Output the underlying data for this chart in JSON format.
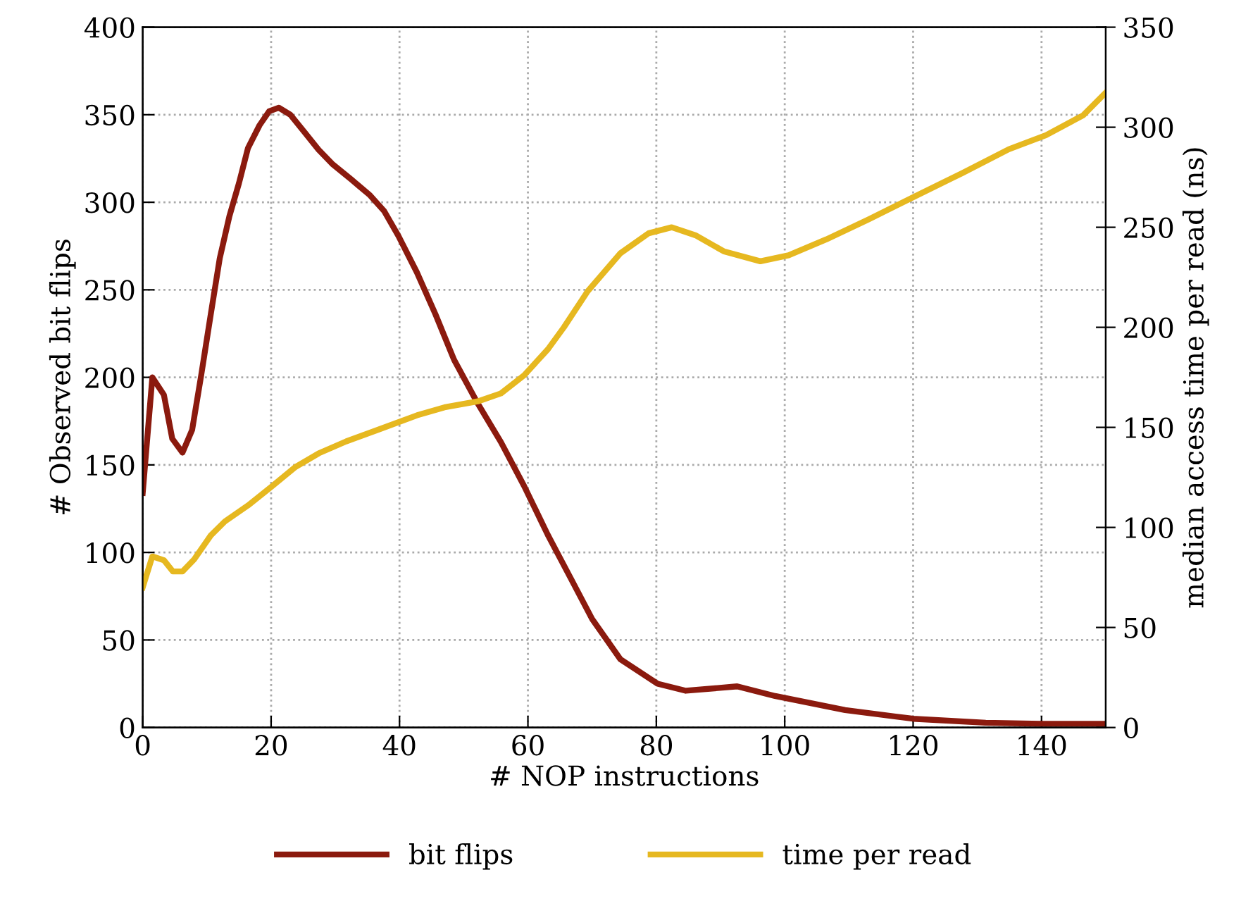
{
  "chart_data": {
    "type": "line",
    "xlabel": "# NOP instructions",
    "ylabel": "# Observed bit flips",
    "y2label": "median access time per read (ns)",
    "xlim": [
      0,
      150
    ],
    "xticks": [
      0,
      20,
      40,
      60,
      80,
      100,
      120,
      140
    ],
    "ylim": [
      0,
      400
    ],
    "yticks": [
      0,
      50,
      100,
      150,
      200,
      250,
      300,
      350,
      400
    ],
    "y2lim": [
      0,
      350
    ],
    "y2ticks": [
      0,
      50,
      100,
      150,
      200,
      250,
      300,
      350
    ],
    "grid": true,
    "legend": "bottom",
    "line_style": "solid",
    "marker": "none",
    "series": [
      {
        "name": "bit flips",
        "color": "#8b1a0e",
        "x": [
          0,
          1.5,
          3.3,
          4.6,
          6.2,
          7.7,
          9.1,
          10.6,
          12,
          13.5,
          15,
          16.4,
          18.2,
          19.7,
          21.2,
          23,
          25.2,
          27.4,
          29.5,
          32.5,
          35.4,
          37.6,
          39.8,
          42.7,
          45.6,
          48.5,
          52.2,
          55.8,
          59.4,
          63.1,
          66.7,
          70,
          74.4,
          80.2,
          84.6,
          92.6,
          98.5,
          109.4,
          120,
          131.3,
          140,
          149.9
        ],
        "values": [
          134,
          200,
          190,
          165,
          157,
          170,
          201,
          236,
          268,
          292,
          311,
          331,
          344,
          352,
          354,
          350,
          340,
          330,
          322,
          313,
          304,
          295,
          281,
          260,
          236,
          210,
          185,
          163,
          138,
          110,
          85,
          62,
          39,
          25,
          21,
          23.5,
          18,
          10,
          5,
          2.7,
          2.1,
          2.1
        ]
      },
      {
        "name": "time per read",
        "color": "#e6b820",
        "axis": "y2",
        "x": [
          0,
          1.5,
          3.3,
          4.7,
          6.2,
          8,
          10.6,
          12.8,
          16.4,
          20.1,
          23.7,
          27.4,
          31.7,
          36.8,
          42.7,
          47,
          52.2,
          55.8,
          59.4,
          63.1,
          65.6,
          69.3,
          74.4,
          78.8,
          82.4,
          86.1,
          90.5,
          96.2,
          100.6,
          106.5,
          113.1,
          120,
          127.6,
          134.9,
          140.7,
          146.5,
          149.9
        ],
        "values": [
          70,
          85.5,
          83.6,
          78,
          78,
          84,
          96,
          103,
          111,
          120.5,
          130,
          137,
          143,
          149,
          156,
          160,
          163,
          167,
          176,
          189,
          200,
          218,
          237,
          247,
          250,
          246,
          238,
          233,
          236,
          244,
          254,
          265,
          277,
          289,
          296,
          306,
          317
        ]
      }
    ]
  }
}
